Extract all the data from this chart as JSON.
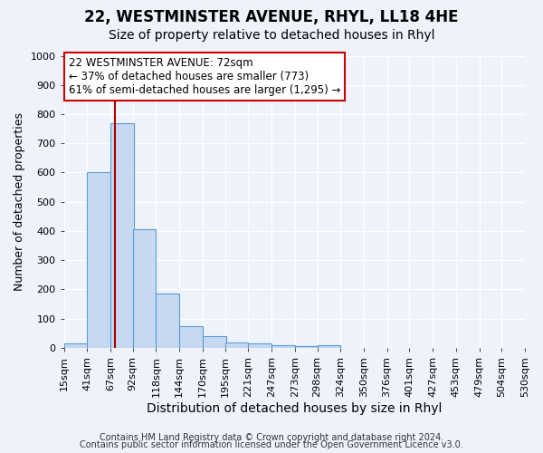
{
  "title": "22, WESTMINSTER AVENUE, RHYL, LL18 4HE",
  "subtitle": "Size of property relative to detached houses in Rhyl",
  "xlabel": "Distribution of detached houses by size in Rhyl",
  "ylabel": "Number of detached properties",
  "bar_left_edges": [
    15,
    41,
    67,
    92,
    118,
    144,
    170,
    195,
    221,
    247,
    273,
    298,
    324,
    350,
    376,
    401,
    427,
    453,
    479,
    504
  ],
  "bar_heights": [
    15,
    600,
    770,
    405,
    185,
    75,
    40,
    18,
    15,
    10,
    5,
    10,
    0,
    0,
    0,
    0,
    0,
    0,
    0,
    0
  ],
  "bin_width": 26,
  "bar_color": "#c6d9f0",
  "bar_edge_color": "#5b9bd5",
  "x_tick_labels": [
    "15sqm",
    "41sqm",
    "67sqm",
    "92sqm",
    "118sqm",
    "144sqm",
    "170sqm",
    "195sqm",
    "221sqm",
    "247sqm",
    "273sqm",
    "298sqm",
    "324sqm",
    "350sqm",
    "376sqm",
    "401sqm",
    "427sqm",
    "453sqm",
    "479sqm",
    "504sqm",
    "530sqm"
  ],
  "ylim": [
    0,
    1000
  ],
  "yticks": [
    0,
    100,
    200,
    300,
    400,
    500,
    600,
    700,
    800,
    900,
    1000
  ],
  "property_line_x": 72,
  "property_line_color": "#aa0000",
  "annotation_line1": "22 WESTMINSTER AVENUE: 72sqm",
  "annotation_line2": "← 37% of detached houses are smaller (773)",
  "annotation_line3": "61% of semi-detached houses are larger (1,295) →",
  "annotation_box_color": "#ffffff",
  "annotation_box_edge_color": "#cc0000",
  "footer_line1": "Contains HM Land Registry data © Crown copyright and database right 2024.",
  "footer_line2": "Contains public sector information licensed under the Open Government Licence v3.0.",
  "background_color": "#edf2fb",
  "plot_bg_color": "#edf2fb",
  "grid_color": "#ffffff",
  "title_fontsize": 12,
  "subtitle_fontsize": 10,
  "xlabel_fontsize": 10,
  "ylabel_fontsize": 9,
  "tick_fontsize": 8,
  "annotation_fontsize": 8.5,
  "footer_fontsize": 7
}
